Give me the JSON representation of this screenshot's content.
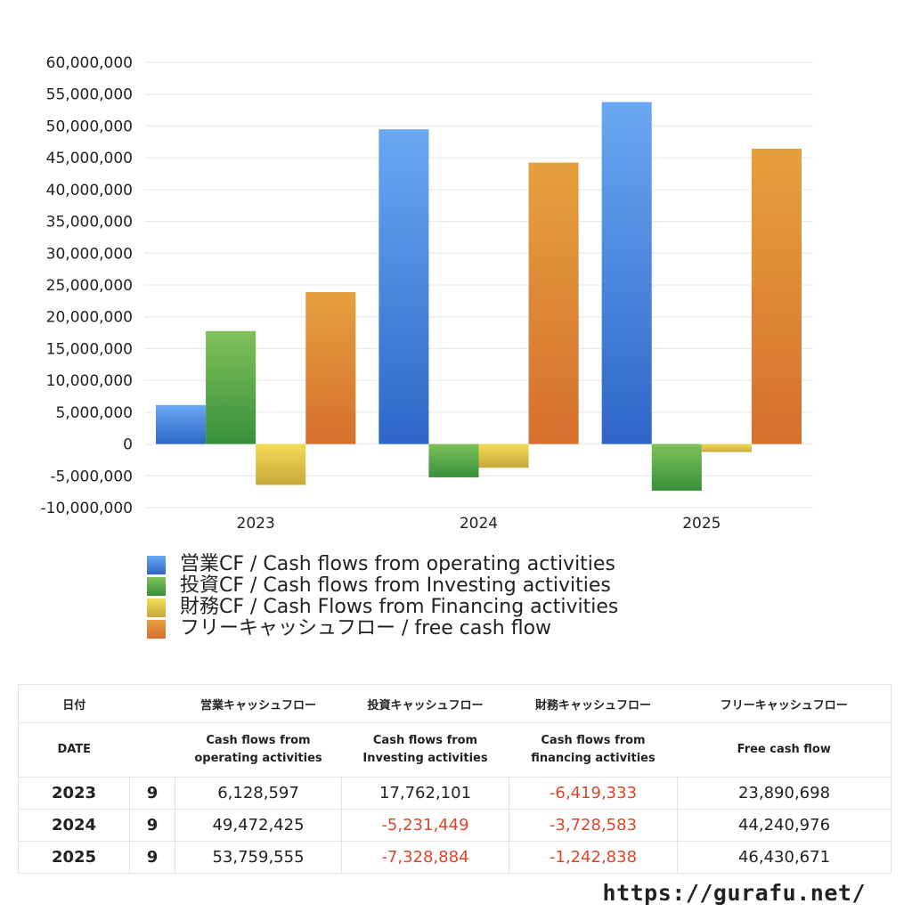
{
  "chart_data": {
    "type": "bar",
    "categories": [
      "2023",
      "2024",
      "2025"
    ],
    "series": [
      {
        "name": "営業CF / Cash flows from operating activities",
        "values": [
          6128597,
          49472425,
          53759555
        ],
        "color_top": "#6aa8f3",
        "color_bottom": "#2f66c7"
      },
      {
        "name": "投資CF / Cash flows from Investing activities",
        "values": [
          17762101,
          -5231449,
          -7328884
        ],
        "color_top": "#80c15a",
        "color_bottom": "#37903a"
      },
      {
        "name": "財務CF / Cash Flows from Financing activities",
        "values": [
          -6419333,
          -3728583,
          -1242838
        ],
        "color_top": "#f3dc57",
        "color_bottom": "#c7a83a"
      },
      {
        "name": "フリーキャッシュフロー / free cash flow",
        "values": [
          23890698,
          44240976,
          46430671
        ],
        "color_top": "#e6a03e",
        "color_bottom": "#d6702e"
      }
    ],
    "yticks": [
      "60,000,000",
      "55,000,000",
      "50,000,000",
      "45,000,000",
      "40,000,000",
      "35,000,000",
      "30,000,000",
      "25,000,000",
      "20,000,000",
      "15,000,000",
      "10,000,000",
      "5,000,000",
      "0",
      "-5,000,000",
      "-10,000,000"
    ],
    "ylim": [
      -10000000,
      60000000
    ],
    "grid": true,
    "legend_position": "bottom",
    "title": "",
    "xlabel": "",
    "ylabel": ""
  },
  "table": {
    "header": {
      "date": "日付",
      "operating": "営業キャッシュフロー",
      "investing": "投資キャッシュフロー",
      "financing": "財務キャッシュフロー",
      "free": "フリーキャッシュフロー"
    },
    "subheader": {
      "date": "DATE",
      "operating_line1": "Cash flows from",
      "operating_line2": "operating activities",
      "investing_line1": "Cash flows from",
      "investing_line2": "Investing activities",
      "financing_line1": "Cash flows from",
      "financing_line2": "financing activities",
      "free": "Free cash flow"
    },
    "rows": [
      {
        "year": "2023",
        "month": "9",
        "operating": "6,128,597",
        "investing": "17,762,101",
        "financing": "-6,419,333",
        "free": "23,890,698"
      },
      {
        "year": "2024",
        "month": "9",
        "operating": "49,472,425",
        "investing": "-5,231,449",
        "financing": "-3,728,583",
        "free": "44,240,976"
      },
      {
        "year": "2025",
        "month": "9",
        "operating": "53,759,555",
        "investing": "-7,328,884",
        "financing": "-1,242,838",
        "free": "46,430,671"
      }
    ],
    "negative_color": "#d9472b"
  },
  "footer": {
    "url": "https://gurafu.net/"
  }
}
